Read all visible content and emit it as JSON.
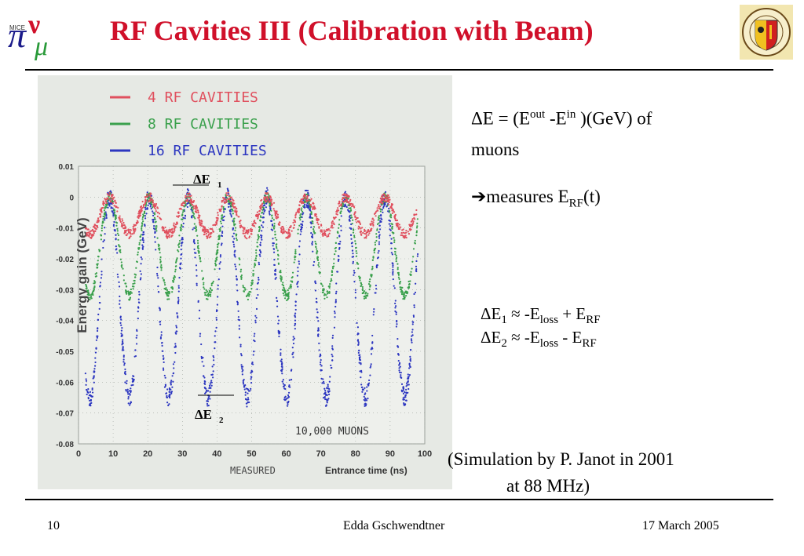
{
  "slide": {
    "title": "RF Cavities III (Calibration with Beam)",
    "footer": {
      "page": "10",
      "author": "Edda Gschwendtner",
      "date": "17 March 2005"
    }
  },
  "logos": {
    "left": {
      "text_mice": "MICE"
    },
    "right": {
      "ring_text": "UNIVERSITE DE GENEVE · SCIENTIA ET LUX"
    }
  },
  "text": {
    "line1_a": "ΔE = (E",
    "line1_sup1": "out",
    "line1_b": " -E",
    "line1_sup2": "in",
    "line1_c": " )(GeV) of",
    "line2": "muons",
    "line3_arrow": "➔",
    "line3_a": "measures E",
    "line3_sub": "RF",
    "line3_b": "(t)",
    "eq1_a": "ΔE",
    "eq1_sub1": "1",
    "eq1_b": " ≈ -E",
    "eq1_sub2": "loss",
    "eq1_c": " + E",
    "eq1_sub3": "RF",
    "eq2_a": "ΔE",
    "eq2_sub1": "2",
    "eq2_b": " ≈ -E",
    "eq2_sub2": "loss",
    "eq2_c": " - E",
    "eq2_sub3": "RF",
    "sim1": "(Simulation by P. Janot in 2001",
    "sim2": "at 88 MHz)"
  },
  "chart_data": {
    "type": "scatter",
    "ylabel": "Energy gain (GeV)",
    "xlabel_left": "MEASURED",
    "xlabel": "Entrance time (ns)",
    "annotation": "10,000 MUONS",
    "label_de1": "ΔE",
    "label_de1_sub": "1",
    "label_de2": "ΔE",
    "label_de2_sub": "2",
    "xlim": [
      0,
      100
    ],
    "ylim": [
      -0.08,
      0.01
    ],
    "x_ticks": [
      "0",
      "10",
      "20",
      "30",
      "40",
      "50",
      "60",
      "70",
      "80",
      "90",
      "100"
    ],
    "y_ticks": [
      "0.01",
      "0",
      "-0.01",
      "-0.02",
      "-0.03",
      "-0.04",
      "-0.05",
      "-0.06",
      "-0.07",
      "-0.08"
    ],
    "period_ns": 11.36,
    "series": [
      {
        "name": "4 RF CAVITIES",
        "color": "#e0505e",
        "max": 0.0,
        "min": -0.012
      },
      {
        "name": "8 RF CAVITIES",
        "color": "#3aa04c",
        "max": 0.0,
        "min": -0.032
      },
      {
        "name": "16 RF CAVITIES",
        "color": "#2c36c0",
        "max": 0.0,
        "min": -0.065
      }
    ]
  }
}
